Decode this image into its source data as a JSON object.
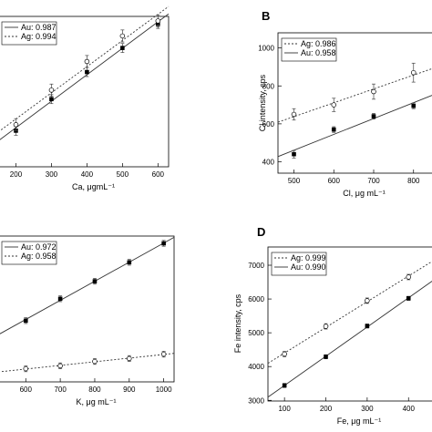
{
  "chart_data": [
    {
      "panel": "",
      "type": "scatter",
      "xlabel": "Ca, μgmL⁻¹",
      "ylabel": "",
      "xticks": [
        200,
        300,
        400,
        500,
        600
      ],
      "xlim": [
        150,
        630
      ],
      "ylim": [
        0,
        100
      ],
      "yticks": [],
      "legend_position": "top-left",
      "series": [
        {
          "name": "Au: 0.987",
          "marker": "filled-square",
          "line": "solid",
          "x": [
            200,
            300,
            400,
            500,
            600
          ],
          "y": [
            24,
            45,
            63,
            79,
            95
          ],
          "err": [
            3,
            3,
            3,
            3,
            3
          ]
        },
        {
          "name": "Ag: 0.994",
          "marker": "open-circle",
          "line": "dotted",
          "x": [
            200,
            300,
            400,
            500,
            600
          ],
          "y": [
            28,
            51,
            70,
            87,
            97
          ],
          "err": [
            4,
            4,
            4,
            4,
            4
          ]
        }
      ]
    },
    {
      "panel": "B",
      "type": "scatter",
      "xlabel": "Cl, μg mL⁻¹",
      "ylabel": "Cl intensity, cps",
      "xticks": [
        500,
        600,
        700,
        800
      ],
      "yticks": [
        400,
        600,
        800,
        1000
      ],
      "xlim": [
        460,
        860
      ],
      "ylim": [
        340,
        1080
      ],
      "legend_position": "top-left",
      "series": [
        {
          "name": "Ag: 0.986",
          "marker": "open-circle",
          "line": "dotted",
          "x": [
            500,
            600,
            700,
            800
          ],
          "y": [
            650,
            700,
            770,
            870
          ],
          "err": [
            30,
            35,
            40,
            50
          ]
        },
        {
          "name": "Au: 0.958",
          "marker": "filled-square",
          "line": "solid",
          "x": [
            500,
            600,
            700,
            800
          ],
          "y": [
            440,
            570,
            640,
            695
          ],
          "err": [
            20,
            15,
            15,
            15
          ]
        }
      ]
    },
    {
      "panel": "",
      "type": "scatter",
      "xlabel": "K, μg mL⁻¹",
      "ylabel": "",
      "xticks": [
        600,
        700,
        800,
        900,
        1000
      ],
      "yticks": [],
      "xlim": [
        520,
        1030
      ],
      "ylim": [
        0,
        100
      ],
      "legend_position": "top-left",
      "series": [
        {
          "name": "Au: 0.972",
          "marker": "filled-square",
          "line": "solid",
          "x": [
            600,
            700,
            800,
            900,
            1000
          ],
          "y": [
            42,
            57,
            69,
            82,
            95
          ],
          "err": [
            2,
            2,
            2,
            2,
            2
          ]
        },
        {
          "name": "Ag: 0.958",
          "marker": "open-circle",
          "line": "dotted",
          "x": [
            600,
            700,
            800,
            900,
            1000
          ],
          "y": [
            9,
            11,
            14,
            16,
            19
          ],
          "err": [
            2,
            2,
            2,
            2,
            2
          ]
        }
      ]
    },
    {
      "panel": "D",
      "type": "scatter",
      "xlabel": "Fe, μg mL⁻¹",
      "ylabel": "Fe intensity, cps",
      "xticks": [
        100,
        200,
        300,
        400
      ],
      "yticks": [
        3000,
        4000,
        5000,
        6000,
        7000
      ],
      "xlim": [
        60,
        470
      ],
      "ylim": [
        2980,
        7540
      ],
      "legend_position": "top-left",
      "series": [
        {
          "name": "Ag: 0.999",
          "marker": "open-circle",
          "line": "dotted",
          "x": [
            100,
            200,
            300,
            400
          ],
          "y": [
            4370,
            5190,
            5950,
            6650
          ],
          "err": [
            80,
            80,
            80,
            80
          ]
        },
        {
          "name": "Au: 0.990",
          "marker": "filled-square",
          "line": "solid",
          "x": [
            100,
            200,
            300,
            400
          ],
          "y": [
            3440,
            4290,
            5200,
            6020
          ],
          "err": [
            60,
            60,
            60,
            60
          ]
        }
      ]
    }
  ]
}
